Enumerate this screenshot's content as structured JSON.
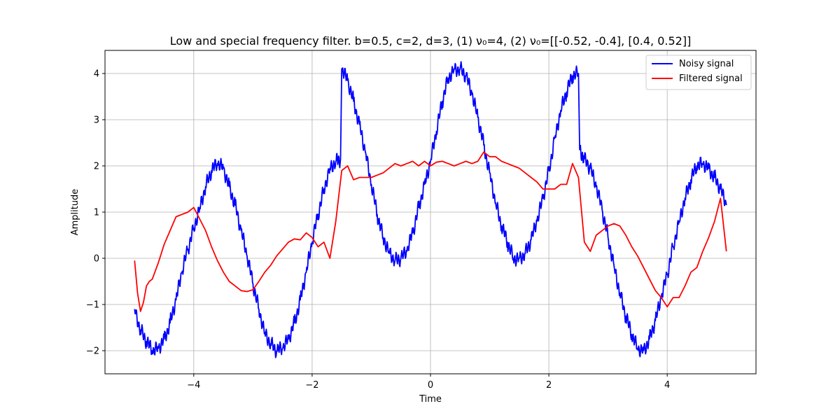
{
  "chart_data": {
    "type": "line",
    "title": "Low and special frequency filter. b=0.5, c=2, d=3, (1) ν₀=4, (2) ν₀=[[-0.52, -0.4], [0.4, 0.52]]",
    "xlabel": "Time",
    "ylabel": "Amplitude",
    "xlim": [
      -5.5,
      5.5
    ],
    "ylim": [
      -2.5,
      4.5
    ],
    "x_ticks": [
      -4,
      -2,
      0,
      2,
      4
    ],
    "y_ticks": [
      -2,
      -1,
      0,
      1,
      2,
      3,
      4
    ],
    "x_tick_labels": [
      "−4",
      "−2",
      "0",
      "2",
      "4"
    ],
    "y_tick_labels": [
      "−2",
      "−1",
      "0",
      "1",
      "2",
      "3",
      "4"
    ],
    "grid": true,
    "legend_position": "top-right",
    "series": [
      {
        "name": "Noisy signal",
        "color": "#0000ff",
        "x": [
          -5.0,
          -4.9,
          -4.8,
          -4.7,
          -4.6,
          -4.5,
          -4.4,
          -4.3,
          -4.2,
          -4.1,
          -4.0,
          -3.9,
          -3.8,
          -3.7,
          -3.6,
          -3.5,
          -3.4,
          -3.3,
          -3.2,
          -3.1,
          -3.0,
          -2.9,
          -2.8,
          -2.7,
          -2.6,
          -2.5,
          -2.4,
          -2.3,
          -2.2,
          -2.1,
          -2.0,
          -1.9,
          -1.8,
          -1.7,
          -1.6,
          -1.52,
          -1.5,
          -1.4,
          -1.3,
          -1.2,
          -1.1,
          -1.0,
          -0.9,
          -0.8,
          -0.7,
          -0.6,
          -0.5,
          -0.4,
          -0.3,
          -0.2,
          -0.1,
          0.0,
          0.1,
          0.2,
          0.3,
          0.4,
          0.5,
          0.6,
          0.7,
          0.8,
          0.9,
          1.0,
          1.1,
          1.2,
          1.3,
          1.4,
          1.5,
          1.6,
          1.7,
          1.8,
          1.9,
          2.0,
          2.1,
          2.2,
          2.3,
          2.4,
          2.5,
          2.52,
          2.6,
          2.7,
          2.8,
          2.9,
          3.0,
          3.1,
          3.2,
          3.3,
          3.4,
          3.5,
          3.6,
          3.7,
          3.8,
          3.9,
          4.0,
          4.1,
          4.2,
          4.3,
          4.4,
          4.5,
          4.6,
          4.7,
          4.8,
          4.9,
          5.0
        ],
        "y": [
          -1.1,
          -1.55,
          -1.8,
          -2.0,
          -1.95,
          -1.75,
          -1.4,
          -0.9,
          -0.3,
          0.2,
          0.65,
          1.1,
          1.55,
          1.9,
          2.05,
          1.95,
          1.55,
          1.15,
          0.6,
          0.05,
          -0.55,
          -1.1,
          -1.6,
          -1.85,
          -2.0,
          -1.95,
          -1.75,
          -1.4,
          -0.9,
          -0.3,
          0.35,
          0.95,
          1.5,
          1.95,
          2.1,
          2.15,
          4.1,
          3.85,
          3.4,
          2.9,
          2.3,
          1.6,
          0.95,
          0.45,
          0.15,
          -0.05,
          0.0,
          0.15,
          0.55,
          1.1,
          1.6,
          2.1,
          2.75,
          3.4,
          3.9,
          4.1,
          4.1,
          3.95,
          3.55,
          3.05,
          2.45,
          1.85,
          1.2,
          0.7,
          0.35,
          0.0,
          0.0,
          0.1,
          0.4,
          0.8,
          1.3,
          1.9,
          2.6,
          3.2,
          3.6,
          3.95,
          4.0,
          2.35,
          2.15,
          1.95,
          1.55,
          1.05,
          0.45,
          -0.15,
          -0.75,
          -1.25,
          -1.65,
          -1.95,
          -2.0,
          -1.75,
          -1.35,
          -0.85,
          -0.35,
          0.25,
          0.8,
          1.3,
          1.7,
          2.0,
          2.05,
          1.95,
          1.75,
          1.5,
          1.15
        ]
      },
      {
        "name": "Filtered signal",
        "color": "#ff0000",
        "x": [
          -5.0,
          -4.95,
          -4.9,
          -4.85,
          -4.8,
          -4.75,
          -4.7,
          -4.6,
          -4.5,
          -4.4,
          -4.3,
          -4.2,
          -4.1,
          -4.0,
          -3.9,
          -3.8,
          -3.7,
          -3.6,
          -3.5,
          -3.4,
          -3.3,
          -3.2,
          -3.1,
          -3.0,
          -2.9,
          -2.8,
          -2.7,
          -2.6,
          -2.5,
          -2.4,
          -2.3,
          -2.2,
          -2.1,
          -2.0,
          -1.9,
          -1.8,
          -1.7,
          -1.6,
          -1.5,
          -1.4,
          -1.3,
          -1.2,
          -1.1,
          -1.0,
          -0.9,
          -0.8,
          -0.7,
          -0.6,
          -0.5,
          -0.4,
          -0.3,
          -0.2,
          -0.1,
          0.0,
          0.1,
          0.2,
          0.3,
          0.4,
          0.5,
          0.6,
          0.7,
          0.8,
          0.9,
          1.0,
          1.1,
          1.2,
          1.3,
          1.4,
          1.5,
          1.6,
          1.7,
          1.8,
          1.9,
          2.0,
          2.1,
          2.2,
          2.3,
          2.4,
          2.5,
          2.6,
          2.7,
          2.8,
          2.9,
          3.0,
          3.1,
          3.2,
          3.3,
          3.4,
          3.5,
          3.6,
          3.7,
          3.8,
          3.9,
          4.0,
          4.1,
          4.2,
          4.3,
          4.4,
          4.5,
          4.6,
          4.7,
          4.8,
          4.9,
          5.0
        ],
        "y": [
          -0.05,
          -0.75,
          -1.15,
          -0.95,
          -0.6,
          -0.5,
          -0.45,
          -0.1,
          0.3,
          0.6,
          0.9,
          0.95,
          1.0,
          1.1,
          0.85,
          0.6,
          0.25,
          -0.05,
          -0.3,
          -0.5,
          -0.6,
          -0.7,
          -0.72,
          -0.68,
          -0.5,
          -0.3,
          -0.15,
          0.05,
          0.2,
          0.35,
          0.42,
          0.4,
          0.55,
          0.45,
          0.25,
          0.35,
          0.0,
          0.8,
          1.9,
          2.0,
          1.7,
          1.75,
          1.75,
          1.75,
          1.8,
          1.85,
          1.95,
          2.05,
          2.0,
          2.05,
          2.1,
          2.0,
          2.1,
          2.0,
          2.08,
          2.1,
          2.05,
          2.0,
          2.05,
          2.1,
          2.05,
          2.1,
          2.3,
          2.2,
          2.2,
          2.1,
          2.05,
          2.0,
          1.95,
          1.85,
          1.75,
          1.65,
          1.5,
          1.5,
          1.5,
          1.6,
          1.6,
          2.05,
          1.75,
          0.35,
          0.15,
          0.5,
          0.6,
          0.7,
          0.75,
          0.7,
          0.5,
          0.25,
          0.05,
          -0.2,
          -0.45,
          -0.7,
          -0.85,
          -1.05,
          -0.85,
          -0.85,
          -0.6,
          -0.3,
          -0.2,
          0.15,
          0.45,
          0.8,
          1.3,
          0.15
        ]
      }
    ]
  }
}
